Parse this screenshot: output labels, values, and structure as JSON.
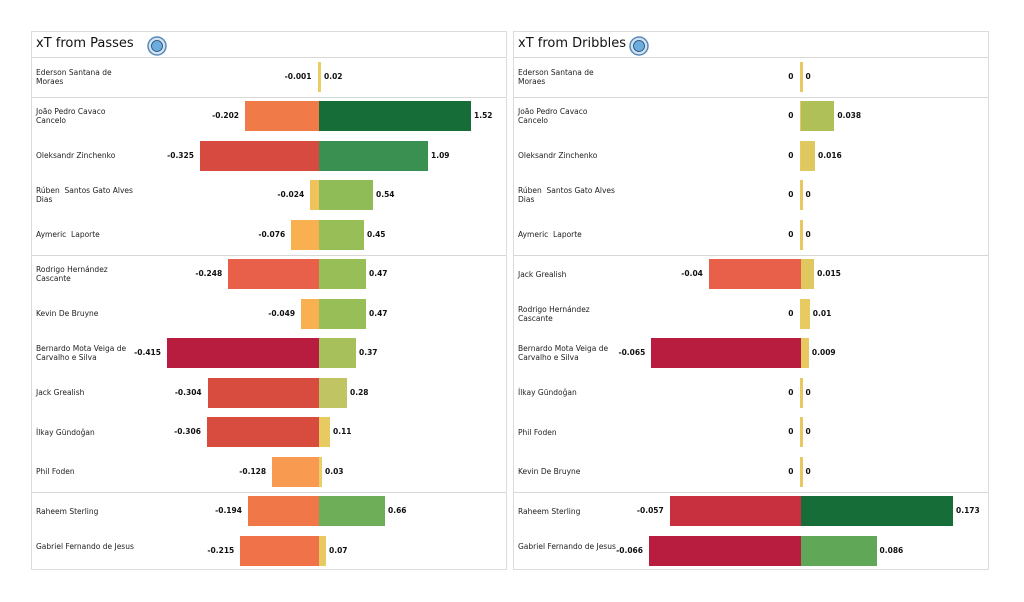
{
  "chart_data": [
    {
      "type": "diverging-bar",
      "title": "xT from Passes",
      "categories": [
        "Ederson Santana de Moraes",
        "João Pedro Cavaco Cancelo",
        "Oleksandr Zinchenko",
        "Rúben  Santos Gato Alves Dias",
        "Aymeric  Laporte",
        "Rodrigo Hernández Cascante",
        "Kevin De Bruyne",
        "Bernardo Mota Veiga de Carvalho e Silva",
        "Jack Grealish",
        "İlkay Gündoğan",
        "Phil Foden",
        "Raheem Sterling",
        "Gabriel Fernando de Jesus"
      ],
      "series": [
        {
          "values": [
            -0.001,
            -0.202,
            -0.325,
            -0.024,
            -0.076,
            -0.248,
            -0.049,
            -0.415,
            -0.304,
            -0.306,
            -0.128,
            -0.194,
            -0.215
          ],
          "colors": [
            "#ecc95a",
            "#f07a48",
            "#d64a40",
            "#f0c25c",
            "#f8b050",
            "#e8604a",
            "#f8b050",
            "#b81c3e",
            "#d84c40",
            "#d84c40",
            "#f89a50",
            "#f07848",
            "#f07248"
          ]
        },
        {
          "values": [
            0.02,
            1.52,
            1.09,
            0.54,
            0.45,
            0.47,
            0.47,
            0.37,
            0.28,
            0.11,
            0.03,
            0.66,
            0.07
          ],
          "colors": [
            "#e8cf68",
            "#176d37",
            "#3a9050",
            "#90bc58",
            "#98be58",
            "#98be58",
            "#98be58",
            "#a8c05c",
            "#c0c462",
            "#e8cb60",
            "#e8cf68",
            "#6eae58",
            "#e8cb60"
          ]
        }
      ]
    },
    {
      "type": "diverging-bar",
      "title": "xT from Dribbles",
      "categories": [
        "Ederson Santana de Moraes",
        "João Pedro Cavaco Cancelo",
        "Oleksandr Zinchenko",
        "Rúben  Santos Gato Alves Dias",
        "Aymeric  Laporte",
        "Jack Grealish",
        "Rodrigo Hernández Cascante",
        "Bernardo Mota Veiga de Carvalho e Silva",
        "İlkay Gündoğan",
        "Phil Foden",
        "Kevin De Bruyne",
        "Raheem Sterling",
        "Gabriel Fernando de Jesus"
      ],
      "series": [
        {
          "values": [
            0,
            0,
            0,
            0,
            0,
            -0.04,
            0,
            -0.065,
            0,
            0,
            0,
            -0.057,
            -0.066
          ],
          "colors": [
            "#e8c860",
            "#e8c860",
            "#e8c860",
            "#e8c860",
            "#e8c860",
            "#e8604a",
            "#e8c860",
            "#b81c3e",
            "#e8c860",
            "#e8c860",
            "#e8c860",
            "#c83040",
            "#b81c3e"
          ]
        },
        {
          "values": [
            0,
            0.038,
            0.016,
            0,
            0,
            0.015,
            0.01,
            0.009,
            0,
            0,
            0,
            0.173,
            0.086
          ],
          "colors": [
            "#e8c860",
            "#b0c058",
            "#e0c860",
            "#e8c860",
            "#e8c860",
            "#e0c860",
            "#e8cb60",
            "#e8c860",
            "#e8c860",
            "#e8c860",
            "#e8c860",
            "#176d37",
            "#60a858"
          ]
        }
      ]
    }
  ]
}
